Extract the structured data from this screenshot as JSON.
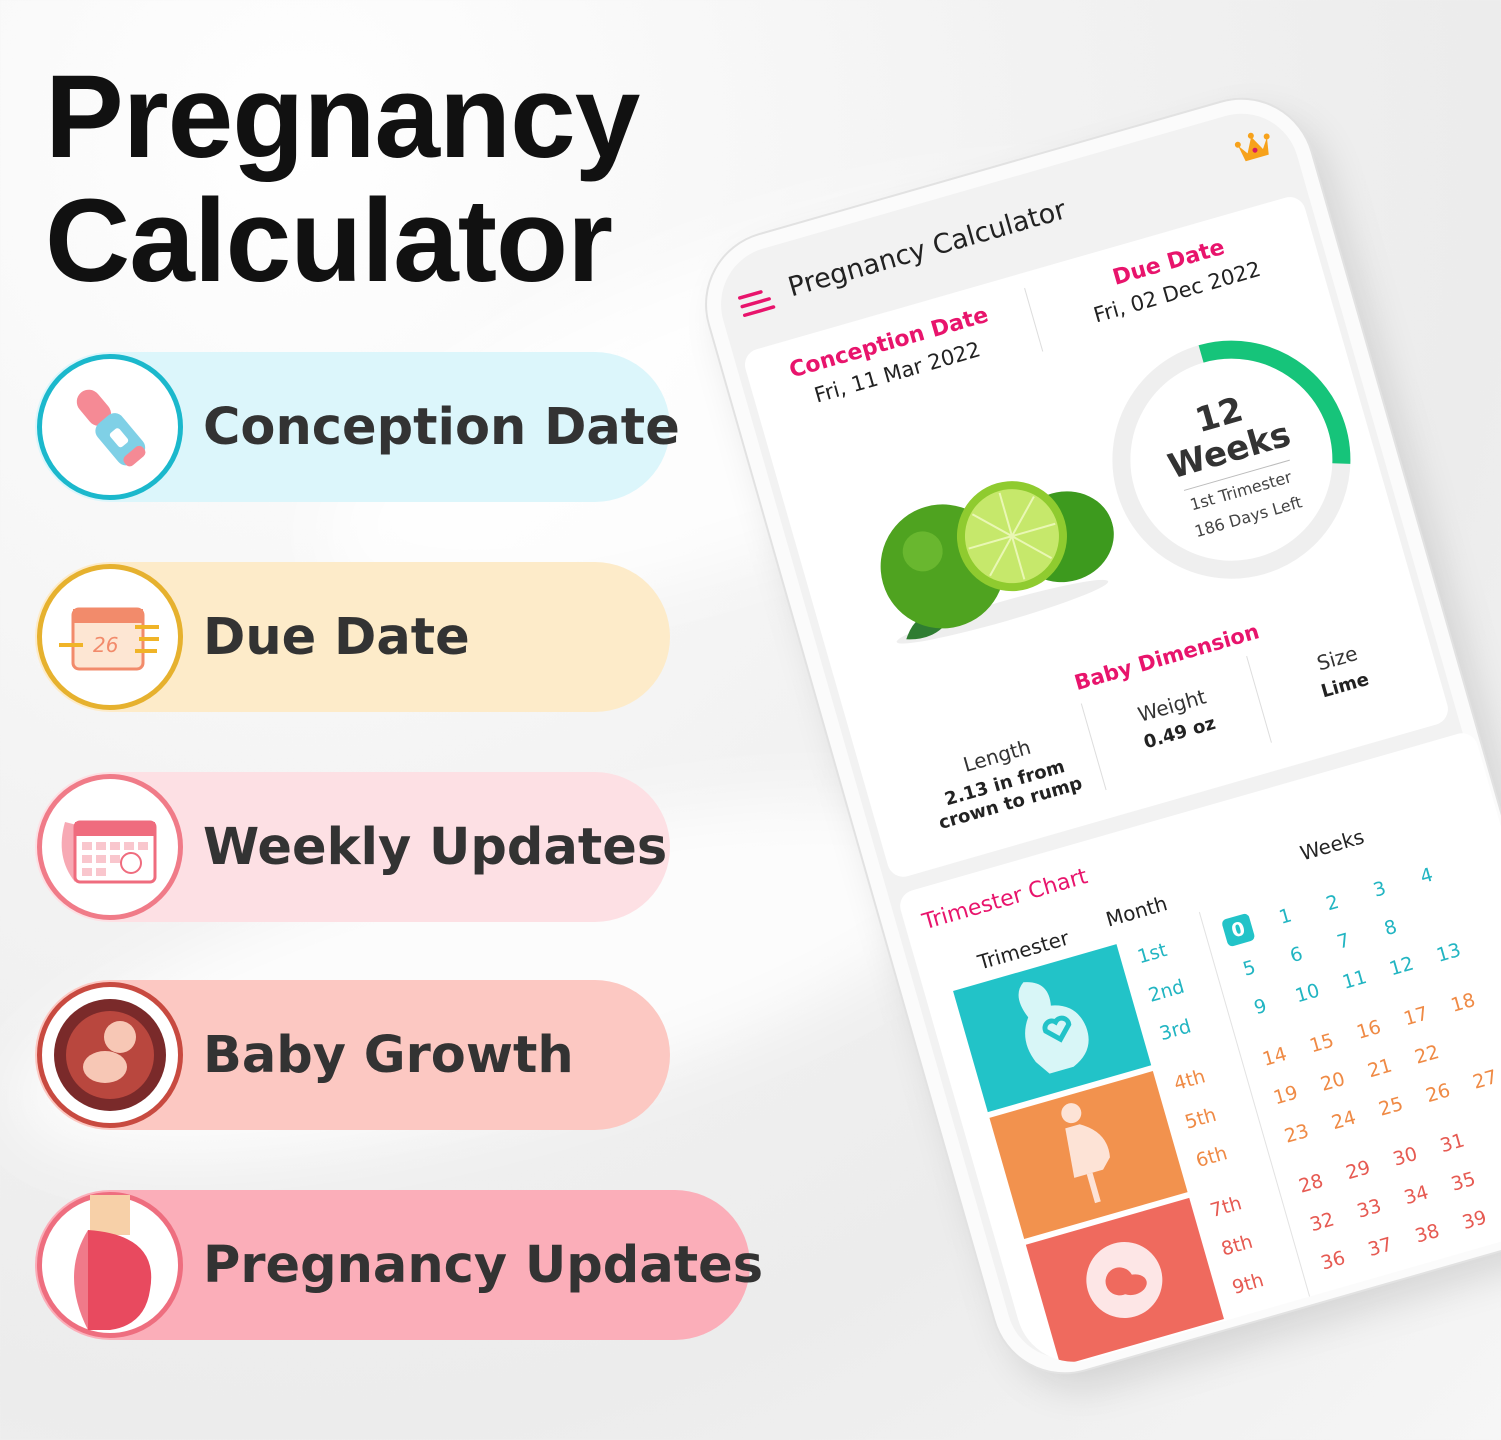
{
  "headline": {
    "line1": "Pregnancy",
    "line2": "Calculator"
  },
  "features": [
    {
      "label": "Conception Date",
      "icon": "pregnancy-test-icon",
      "bg": "#dcf6fb",
      "border": "#1bb8cc"
    },
    {
      "label": "Due Date",
      "icon": "calendar-icon",
      "bg": "#fdebc9",
      "border": "#e6b12e"
    },
    {
      "label": "Weekly Updates",
      "icon": "weekly-calendar-icon",
      "bg": "#fde0e4",
      "border": "#f07b88"
    },
    {
      "label": "Baby Growth",
      "icon": "fetus-icon",
      "bg": "#fcc8c2",
      "border": "#c84a40"
    },
    {
      "label": "Pregnancy Updates",
      "icon": "pregnant-belly-icon",
      "bg": "#fbaeb9",
      "border": "#ee6e7f"
    }
  ],
  "app": {
    "title": "Pregnancy Calculator",
    "menu_icon": "hamburger-icon",
    "premium_icon": "crown-icon",
    "accent": "#e8146c",
    "conception": {
      "label": "Conception Date",
      "value": "Fri, 11 Mar 2022"
    },
    "due": {
      "label": "Due Date",
      "value": "Fri, 02 Dec 2022"
    },
    "progress": {
      "weeks": "12",
      "weeks_label": "Weeks",
      "trimester": "1st Trimester",
      "days_left": "186 Days Left",
      "fraction": 0.3,
      "color": "#16c47a"
    },
    "dimension": {
      "title": "Baby Dimension",
      "length": {
        "label": "Length",
        "value1": "2.13 in from",
        "value2": "crown to rump"
      },
      "weight": {
        "label": "Weight",
        "value": "0.49 oz"
      },
      "size": {
        "label": "Size",
        "value": "Lime"
      }
    },
    "chart": {
      "title": "Trimester Chart",
      "col_trimester": "Trimester",
      "col_month": "Month",
      "col_weeks": "Weeks",
      "selected_week": "0",
      "trimesters": [
        {
          "color": "#22c3c8",
          "text": "#22b5c2",
          "icon": "pregnant-heart-icon",
          "months": [
            {
              "label": "1st",
              "weeks": [
                "0",
                "1",
                "2",
                "3",
                "4"
              ]
            },
            {
              "label": "2nd",
              "weeks": [
                "5",
                "6",
                "7",
                "8"
              ]
            },
            {
              "label": "3rd",
              "weeks": [
                "9",
                "10",
                "11",
                "12",
                "13"
              ]
            }
          ]
        },
        {
          "color": "#f2924e",
          "text": "#ef8a45",
          "icon": "pregnant-woman-icon",
          "months": [
            {
              "label": "4th",
              "weeks": [
                "14",
                "15",
                "16",
                "17",
                "18"
              ]
            },
            {
              "label": "5th",
              "weeks": [
                "19",
                "20",
                "21",
                "22"
              ]
            },
            {
              "label": "6th",
              "weeks": [
                "23",
                "24",
                "25",
                "26",
                "27"
              ]
            }
          ]
        },
        {
          "color": "#ef6a5e",
          "text": "#e65a52",
          "icon": "baby-womb-icon",
          "months": [
            {
              "label": "7th",
              "weeks": [
                "28",
                "29",
                "30",
                "31"
              ]
            },
            {
              "label": "8th",
              "weeks": [
                "32",
                "33",
                "34",
                "35"
              ]
            },
            {
              "label": "9th",
              "weeks": [
                "36",
                "37",
                "38",
                "39"
              ]
            }
          ]
        }
      ]
    }
  }
}
